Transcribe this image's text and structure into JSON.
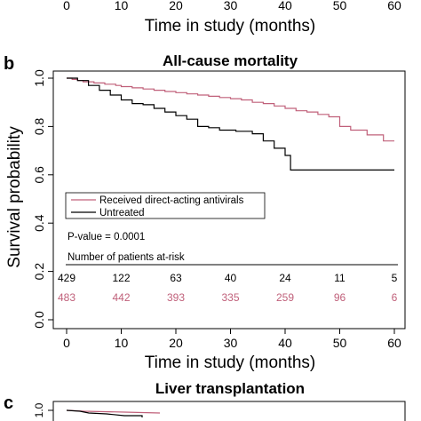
{
  "top_partial": {
    "tick_labels": [
      "0",
      "10",
      "20",
      "30",
      "40",
      "50",
      "60"
    ],
    "xlabel": "Time in study (months)"
  },
  "panel_b": {
    "letter": "b",
    "legend": {
      "treated": "Received direct-acting antivirals",
      "untreated": "Untreated"
    },
    "pvalue": "P-value = 0.0001",
    "risk_title": "Number of patients at-risk",
    "colors": {
      "treated": "#c0607a",
      "untreated": "#000000"
    }
  },
  "panel_c": {
    "letter": "c",
    "title": "Liver transplantation",
    "y_tick": "1.0"
  },
  "chart_data": {
    "type": "line",
    "title": "All-cause mortality",
    "xlabel": "Time in study (months)",
    "ylabel": "Survival probability",
    "xlim": [
      0,
      60
    ],
    "ylim": [
      0,
      1
    ],
    "xticks": [
      0,
      10,
      20,
      30,
      40,
      50,
      60
    ],
    "xtick_labels": [
      "0",
      "10",
      "20",
      "30",
      "40",
      "50",
      "60"
    ],
    "yticks": [
      0,
      0.2,
      0.4,
      0.6,
      0.8,
      1.0
    ],
    "ytick_labels": [
      "0.0",
      "0.2",
      "0.4",
      "0.6",
      "0.8",
      "1.0"
    ],
    "grid": false,
    "legend_position": "lower-left",
    "series": [
      {
        "name": "Received direct-acting antivirals",
        "color": "#c0607a",
        "points": [
          [
            0,
            1.0
          ],
          [
            1,
            0.995
          ],
          [
            2,
            0.99
          ],
          [
            3,
            0.985
          ],
          [
            5,
            0.98
          ],
          [
            7,
            0.975
          ],
          [
            9,
            0.97
          ],
          [
            10,
            0.965
          ],
          [
            12,
            0.96
          ],
          [
            14,
            0.955
          ],
          [
            16,
            0.95
          ],
          [
            18,
            0.945
          ],
          [
            20,
            0.94
          ],
          [
            22,
            0.935
          ],
          [
            24,
            0.93
          ],
          [
            26,
            0.925
          ],
          [
            28,
            0.92
          ],
          [
            30,
            0.915
          ],
          [
            32,
            0.91
          ],
          [
            34,
            0.9
          ],
          [
            36,
            0.895
          ],
          [
            38,
            0.885
          ],
          [
            40,
            0.875
          ],
          [
            42,
            0.865
          ],
          [
            44,
            0.86
          ],
          [
            46,
            0.85
          ],
          [
            48,
            0.84
          ],
          [
            50,
            0.8
          ],
          [
            52,
            0.785
          ],
          [
            55,
            0.765
          ],
          [
            58,
            0.74
          ],
          [
            60,
            0.74
          ]
        ],
        "at_risk": [
          "483",
          "442",
          "393",
          "335",
          "259",
          "96",
          "6"
        ]
      },
      {
        "name": "Untreated",
        "color": "#000000",
        "points": [
          [
            0,
            1.0
          ],
          [
            2,
            0.99
          ],
          [
            4,
            0.97
          ],
          [
            6,
            0.95
          ],
          [
            8,
            0.93
          ],
          [
            10,
            0.91
          ],
          [
            12,
            0.895
          ],
          [
            14,
            0.89
          ],
          [
            16,
            0.875
          ],
          [
            18,
            0.86
          ],
          [
            20,
            0.845
          ],
          [
            22,
            0.83
          ],
          [
            24,
            0.8
          ],
          [
            26,
            0.795
          ],
          [
            28,
            0.785
          ],
          [
            31,
            0.78
          ],
          [
            34,
            0.77
          ],
          [
            36,
            0.74
          ],
          [
            38,
            0.71
          ],
          [
            40,
            0.68
          ],
          [
            41,
            0.62
          ],
          [
            50,
            0.62
          ],
          [
            60,
            0.62
          ]
        ],
        "at_risk": [
          "429",
          "122",
          "63",
          "40",
          "24",
          "11",
          "5"
        ]
      }
    ]
  }
}
